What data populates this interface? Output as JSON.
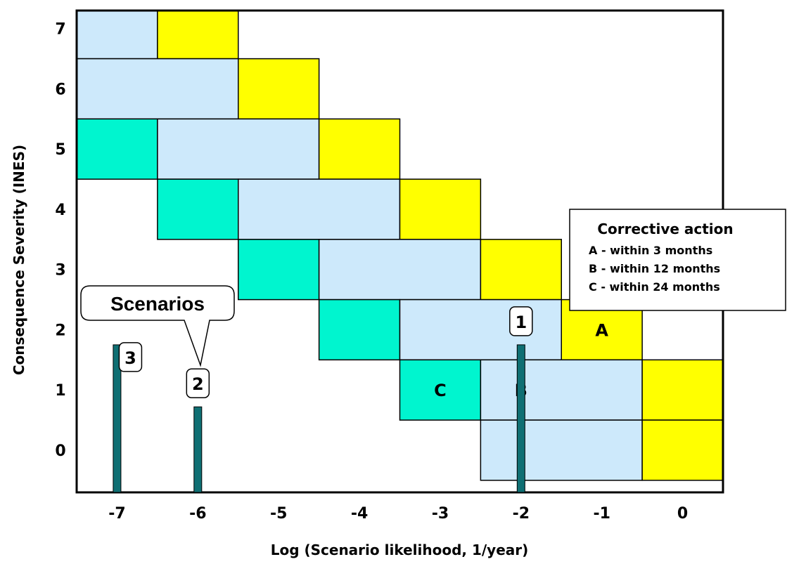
{
  "colors": {
    "A": "#ffff00",
    "B": "#cde9fb",
    "C": "#00f5cf",
    "bar": "#0f6f73",
    "grid_border": "#000000"
  },
  "chart_data": {
    "type": "heatmap",
    "title": "",
    "xlabel": "Log (Scenario likelihood, 1/year)",
    "ylabel": "Consequence Severity (INES)",
    "x_ticks": [
      "-7",
      "-6",
      "-5",
      "-4",
      "-3",
      "-2",
      "-1",
      "0"
    ],
    "y_ticks": [
      "0",
      "1",
      "2",
      "3",
      "4",
      "5",
      "6",
      "7"
    ],
    "xlim": [
      -7.5,
      0.5
    ],
    "ylim": [
      -0.7,
      7.3
    ],
    "zones": [
      {
        "severity": 7,
        "x_from": -7.5,
        "x_to": -6.5,
        "zone": "B"
      },
      {
        "severity": 7,
        "x_from": -6.5,
        "x_to": -5.5,
        "zone": "A"
      },
      {
        "severity": 6,
        "x_from": -7.5,
        "x_to": -5.5,
        "zone": "B"
      },
      {
        "severity": 6,
        "x_from": -5.5,
        "x_to": -4.5,
        "zone": "A"
      },
      {
        "severity": 5,
        "x_from": -7.5,
        "x_to": -6.5,
        "zone": "C"
      },
      {
        "severity": 5,
        "x_from": -6.5,
        "x_to": -4.5,
        "zone": "B"
      },
      {
        "severity": 5,
        "x_from": -4.5,
        "x_to": -3.5,
        "zone": "A"
      },
      {
        "severity": 4,
        "x_from": -6.5,
        "x_to": -5.5,
        "zone": "C"
      },
      {
        "severity": 4,
        "x_from": -5.5,
        "x_to": -3.5,
        "zone": "B"
      },
      {
        "severity": 4,
        "x_from": -3.5,
        "x_to": -2.5,
        "zone": "A"
      },
      {
        "severity": 3,
        "x_from": -5.5,
        "x_to": -4.5,
        "zone": "C"
      },
      {
        "severity": 3,
        "x_from": -4.5,
        "x_to": -2.5,
        "zone": "B"
      },
      {
        "severity": 3,
        "x_from": -2.5,
        "x_to": -1.5,
        "zone": "A"
      },
      {
        "severity": 2,
        "x_from": -4.5,
        "x_to": -3.5,
        "zone": "C"
      },
      {
        "severity": 2,
        "x_from": -3.5,
        "x_to": -1.5,
        "zone": "B"
      },
      {
        "severity": 2,
        "x_from": -1.5,
        "x_to": -0.5,
        "zone": "A"
      },
      {
        "severity": 1,
        "x_from": -3.5,
        "x_to": -2.5,
        "zone": "C"
      },
      {
        "severity": 1,
        "x_from": -2.5,
        "x_to": -0.5,
        "zone": "B"
      },
      {
        "severity": 1,
        "x_from": -0.5,
        "x_to": 0.5,
        "zone": "A"
      },
      {
        "severity": 0,
        "x_from": -2.5,
        "x_to": -0.5,
        "zone": "B"
      },
      {
        "severity": 0,
        "x_from": -0.5,
        "x_to": 0.5,
        "zone": "A"
      }
    ],
    "zone_labels": [
      {
        "text": "A",
        "x": -1.0,
        "y": 2.0
      },
      {
        "text": "B",
        "x": -2.0,
        "y": 1.0
      },
      {
        "text": "C",
        "x": -3.0,
        "y": 1.0
      }
    ],
    "scenarios": [
      {
        "label": "1",
        "x": -2.0,
        "severity": 1.75
      },
      {
        "label": "2",
        "x": -6.0,
        "severity": 0.72
      },
      {
        "label": "3",
        "x": -7.0,
        "severity": 1.75
      }
    ],
    "callout": {
      "text": "Scenarios"
    },
    "legend": {
      "title": "Corrective action",
      "items": [
        "A - within 3 months",
        "B - within 12 months",
        "C - within 24 months"
      ],
      "position": "right"
    }
  }
}
